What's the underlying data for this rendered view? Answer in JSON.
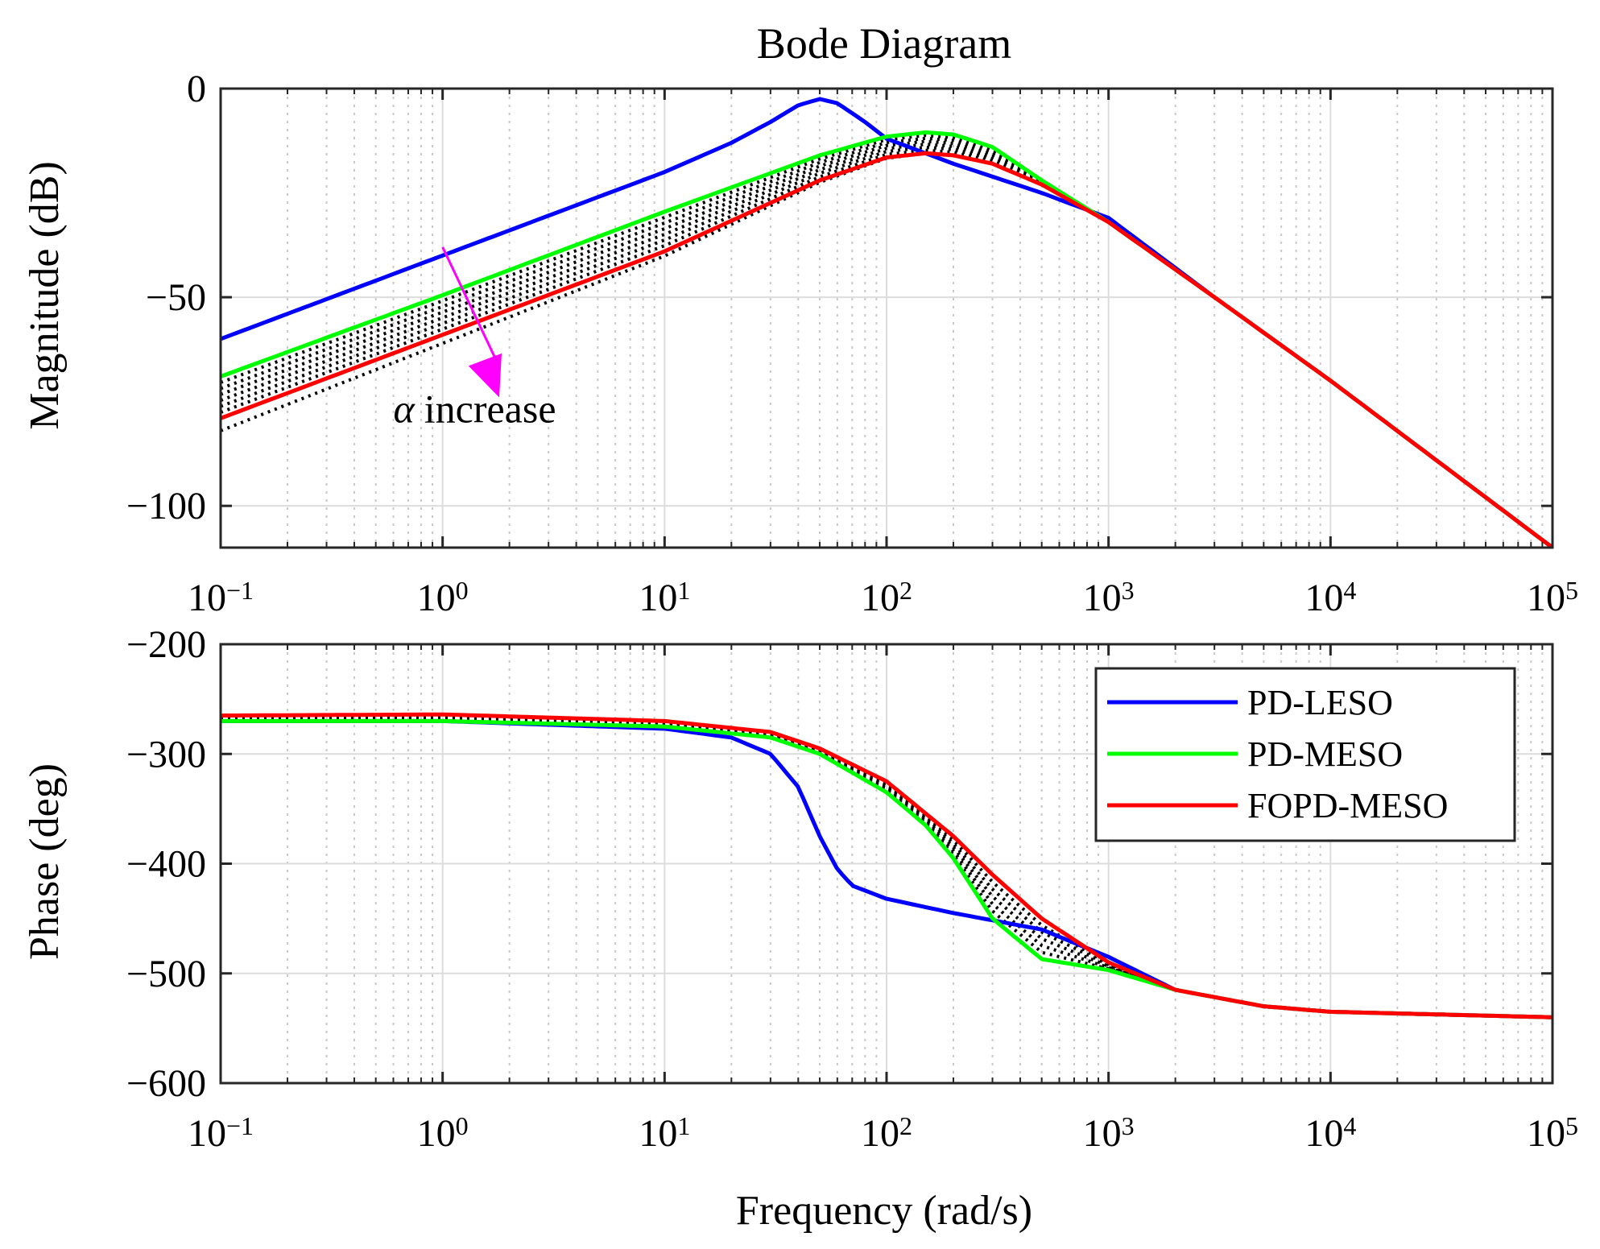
{
  "chart_data": {
    "type": "line",
    "title": "Bode Diagram",
    "xlabel": "Frequency (rad/s)",
    "xscale": "log",
    "xlim": [
      0.1,
      100000
    ],
    "x_tick_labels": [
      {
        "base": "10",
        "exp": "−1"
      },
      {
        "base": "10",
        "exp": "0"
      },
      {
        "base": "10",
        "exp": "1"
      },
      {
        "base": "10",
        "exp": "2"
      },
      {
        "base": "10",
        "exp": "3"
      },
      {
        "base": "10",
        "exp": "4"
      },
      {
        "base": "10",
        "exp": "5"
      }
    ],
    "grid": true,
    "colors": {
      "PD-LESO": "#0000ff",
      "PD-MESO": "#00ff00",
      "FOPD-MESO": "#ff0000",
      "family": "#000000",
      "annotation": "#ff00ff"
    },
    "legend": {
      "position": "top-right",
      "entries": [
        "PD-LESO",
        "PD-MESO",
        "FOPD-MESO"
      ]
    },
    "panels": [
      {
        "name": "magnitude",
        "ylabel": "Magnitude (dB)",
        "ylim": [
          -110,
          0
        ],
        "yticks": [
          0,
          -50,
          -100
        ],
        "ytick_labels": [
          "0",
          "−50",
          "−100"
        ],
        "series": [
          {
            "name": "PD-LESO",
            "x": [
              0.1,
              1,
              10,
              20,
              30,
              40,
              50,
              60,
              80,
              100,
              200,
              500,
              1000,
              3000,
              10000,
              100000
            ],
            "values": [
              -60,
              -40,
              -20,
              -13,
              -8,
              -4,
              -2.5,
              -3.5,
              -8,
              -12,
              -18,
              -25,
              -31,
              -50,
              -70,
              -110
            ]
          },
          {
            "name": "PD-MESO",
            "x": [
              0.1,
              1,
              10,
              50,
              100,
              150,
              200,
              300,
              500,
              1000,
              3000,
              10000,
              100000
            ],
            "values": [
              -69,
              -49.5,
              -29.5,
              -16,
              -11.5,
              -10.5,
              -11,
              -14,
              -22,
              -32,
              -50,
              -70,
              -110
            ]
          },
          {
            "name": "FOPD-MESO",
            "x": [
              0.1,
              1,
              10,
              50,
              100,
              150,
              200,
              300,
              500,
              1000,
              3000,
              10000,
              100000
            ],
            "values": [
              -79,
              -59,
              -39,
              -22,
              -16.5,
              -15.5,
              -16,
              -18,
              -23,
              -32,
              -50,
              -70,
              -110
            ]
          }
        ],
        "family_band": {
          "lower_offset_start": -3,
          "count": 7
        },
        "annotation": {
          "text": "increase",
          "symbol": "α",
          "x_start": 1,
          "y_start": -38,
          "x_end": 1.8,
          "y_end": -74,
          "label_x": 0.6,
          "label_y": -80
        }
      },
      {
        "name": "phase",
        "ylabel": "Phase (deg)",
        "ylim": [
          -600,
          -200
        ],
        "yticks": [
          -200,
          -300,
          -400,
          -500,
          -600
        ],
        "ytick_labels": [
          "−200",
          "−300",
          "−400",
          "−500",
          "−600"
        ],
        "series": [
          {
            "name": "PD-LESO",
            "x": [
              0.1,
              1,
              10,
              20,
              30,
              40,
              50,
              60,
              70,
              100,
              200,
              500,
              1000,
              2000,
              5000,
              10000,
              100000
            ],
            "values": [
              -270,
              -270,
              -277,
              -285,
              -300,
              -330,
              -375,
              -405,
              -420,
              -432,
              -445,
              -460,
              -485,
              -515,
              -530,
              -535,
              -540
            ]
          },
          {
            "name": "PD-MESO",
            "x": [
              0.1,
              1,
              10,
              30,
              50,
              100,
              150,
              200,
              300,
              500,
              1000,
              2000,
              5000,
              10000,
              100000
            ],
            "values": [
              -270,
              -270,
              -275,
              -285,
              -300,
              -335,
              -365,
              -395,
              -450,
              -487,
              -497,
              -515,
              -530,
              -535,
              -540
            ]
          },
          {
            "name": "FOPD-MESO",
            "x": [
              0.1,
              1,
              10,
              30,
              50,
              100,
              200,
              300,
              500,
              1000,
              2000,
              5000,
              10000,
              100000
            ],
            "values": [
              -265,
              -264,
              -270,
              -280,
              -295,
              -325,
              -375,
              -410,
              -450,
              -490,
              -515,
              -530,
              -535,
              -540
            ]
          }
        ]
      }
    ]
  }
}
